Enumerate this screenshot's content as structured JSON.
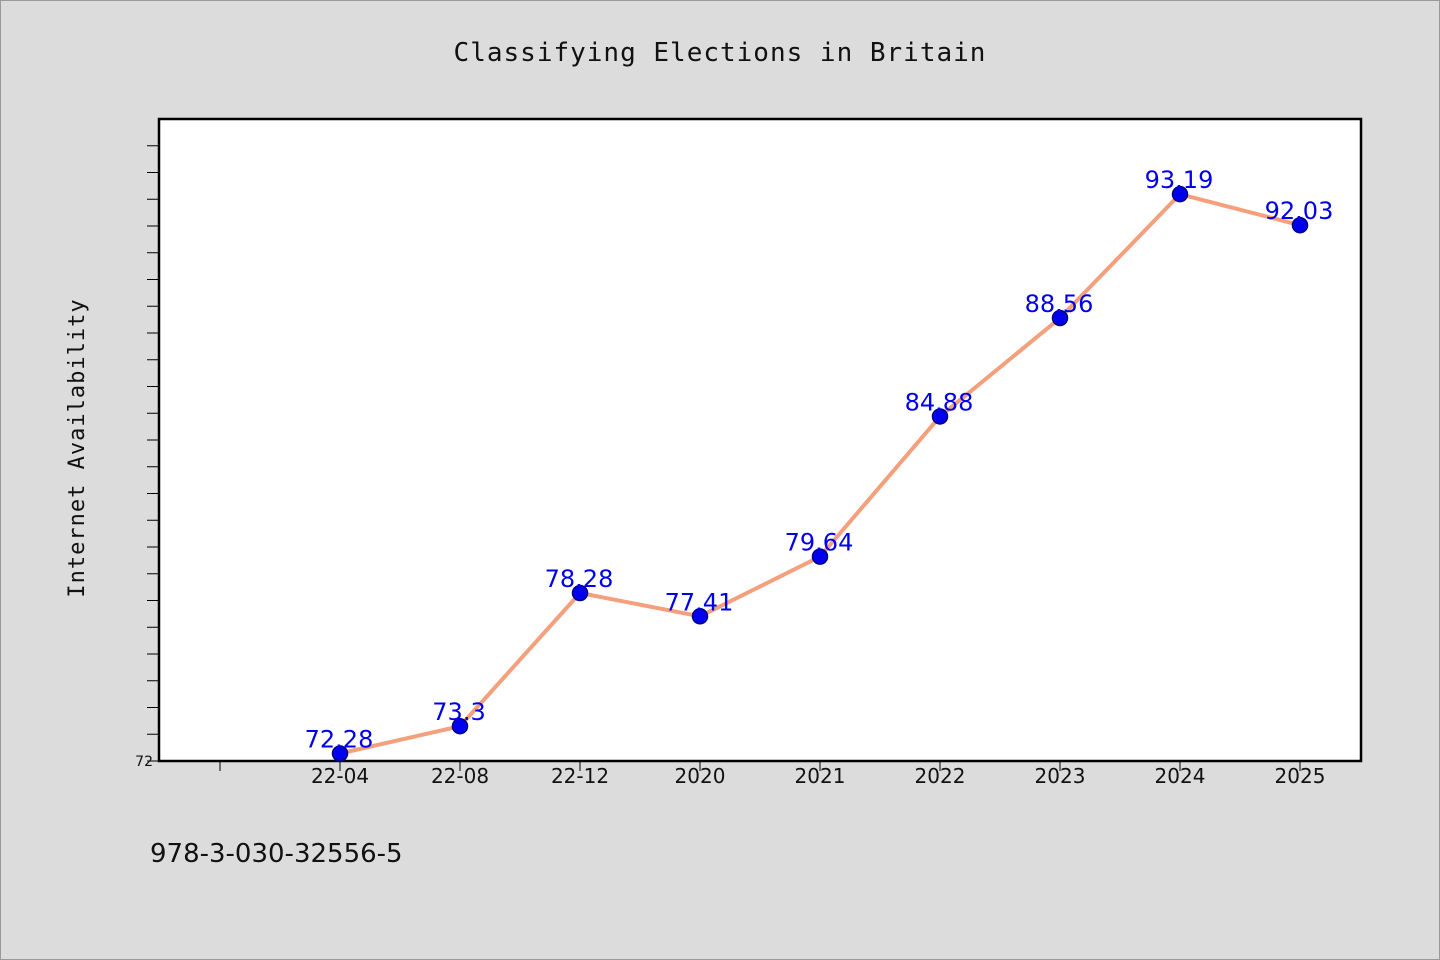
{
  "chart_data": {
    "type": "line",
    "title": "Classifying Elections in Britain",
    "ylabel": "Internet Availability",
    "xlabel": "",
    "categories": [
      "22-04",
      "22-08",
      "22-12",
      "2020",
      "2021",
      "2022",
      "2023",
      "2024",
      "2025"
    ],
    "values": [
      72.28,
      73.3,
      78.28,
      77.41,
      79.64,
      84.88,
      88.56,
      93.19,
      92.03
    ],
    "value_labels": [
      "72.28",
      "73.3",
      "78.28",
      "77.41",
      "79.64",
      "84.88",
      "88.56",
      "93.19",
      "92.03"
    ],
    "ylim": [
      72,
      96
    ],
    "ytick_labels": [
      "72"
    ],
    "grid": false,
    "colors": {
      "line": "#f4a07c",
      "marker": "#0000ee",
      "marker_edge": "#000080",
      "label": "#0000ee",
      "plot_bg": "#ffffff",
      "page_bg": "#dcdcdc"
    }
  },
  "footer": {
    "isbn": "978-3-030-32556-5"
  }
}
